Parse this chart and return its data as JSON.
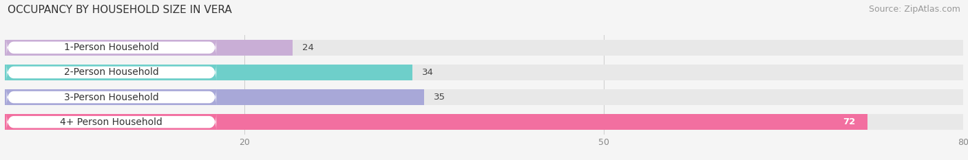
{
  "title": "OCCUPANCY BY HOUSEHOLD SIZE IN VERA",
  "source": "Source: ZipAtlas.com",
  "categories": [
    "1-Person Household",
    "2-Person Household",
    "3-Person Household",
    "4+ Person Household"
  ],
  "values": [
    24,
    34,
    35,
    72
  ],
  "bar_colors": [
    "#c9aed6",
    "#6ecfca",
    "#a8a8d8",
    "#f26fa0"
  ],
  "bar_bg_color": "#e8e8e8",
  "label_bg_color": "#ffffff",
  "xlim": [
    0,
    80
  ],
  "xticks": [
    20,
    50,
    80
  ],
  "background_color": "#f5f5f5",
  "title_fontsize": 11,
  "source_fontsize": 9,
  "label_fontsize": 10,
  "value_fontsize": 9.5,
  "tick_fontsize": 9
}
